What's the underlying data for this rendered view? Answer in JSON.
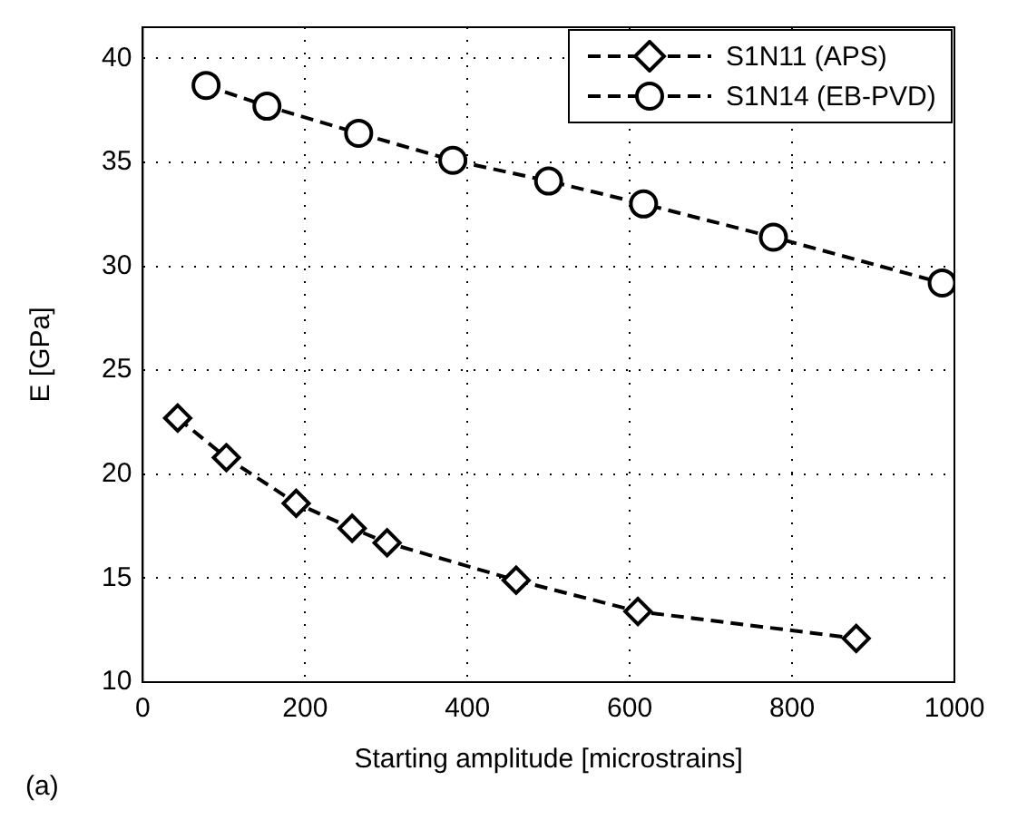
{
  "chart_data": {
    "type": "line",
    "xlabel": "Starting amplitude [microstrains]",
    "ylabel": "E [GPa]",
    "annotations": [
      "(a)"
    ],
    "xlim": [
      0,
      1000
    ],
    "xticks": [
      0,
      200,
      400,
      600,
      800,
      1000
    ],
    "ylim": [
      10,
      41.5
    ],
    "yticks": [
      10,
      15,
      20,
      25,
      30,
      35,
      40
    ],
    "grid": true,
    "legend": "top right",
    "line_style": "dashed",
    "series": [
      {
        "name": "S1N11 (APS)",
        "color": "#000000",
        "marker": "diamond",
        "x": [
          43,
          103,
          189,
          258,
          301,
          460,
          610,
          879
        ],
        "values": [
          22.7,
          20.8,
          18.6,
          17.4,
          16.7,
          14.9,
          13.4,
          12.1
        ]
      },
      {
        "name": "S1N14 (EB-PVD)",
        "color": "#000000",
        "marker": "circle",
        "x": [
          78,
          153,
          266,
          382,
          500,
          617,
          777,
          985
        ],
        "values": [
          38.7,
          37.7,
          36.4,
          35.1,
          34.1,
          33.0,
          31.4,
          29.2
        ]
      }
    ]
  }
}
